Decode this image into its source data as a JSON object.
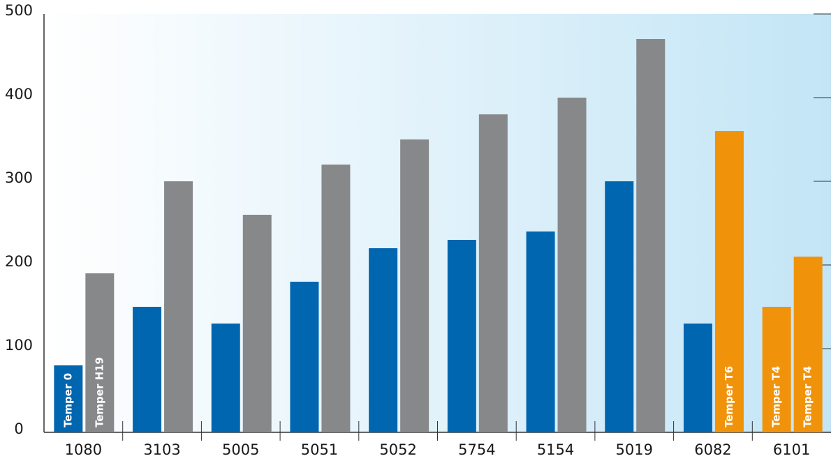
{
  "chart_data": {
    "type": "bar",
    "categories": [
      "1080",
      "3103",
      "5005",
      "5051",
      "5052",
      "5754",
      "5154",
      "5019",
      "6082",
      "6101"
    ],
    "series": [
      {
        "colors": [
          "#0066b0",
          "#0066b0",
          "#0066b0",
          "#0066b0",
          "#0066b0",
          "#0066b0",
          "#0066b0",
          "#0066b0",
          "#0066b0",
          "#f0930b"
        ],
        "values": [
          80,
          150,
          130,
          180,
          220,
          230,
          240,
          300,
          130,
          150
        ],
        "labels": [
          "Temper 0",
          null,
          null,
          null,
          null,
          null,
          null,
          null,
          null,
          "Temper T4"
        ]
      },
      {
        "colors": [
          "#87888a",
          "#87888a",
          "#87888a",
          "#87888a",
          "#87888a",
          "#87888a",
          "#87888a",
          "#87888a",
          "#f0930b",
          "#f0930b"
        ],
        "values": [
          190,
          300,
          260,
          320,
          350,
          380,
          400,
          470,
          360,
          210
        ],
        "labels": [
          "Temper H19",
          null,
          null,
          null,
          null,
          null,
          null,
          null,
          "Temper T6",
          "Temper T4"
        ]
      }
    ],
    "ylim": [
      0,
      500
    ],
    "yticks": [
      0,
      100,
      200,
      300,
      400,
      500
    ]
  }
}
